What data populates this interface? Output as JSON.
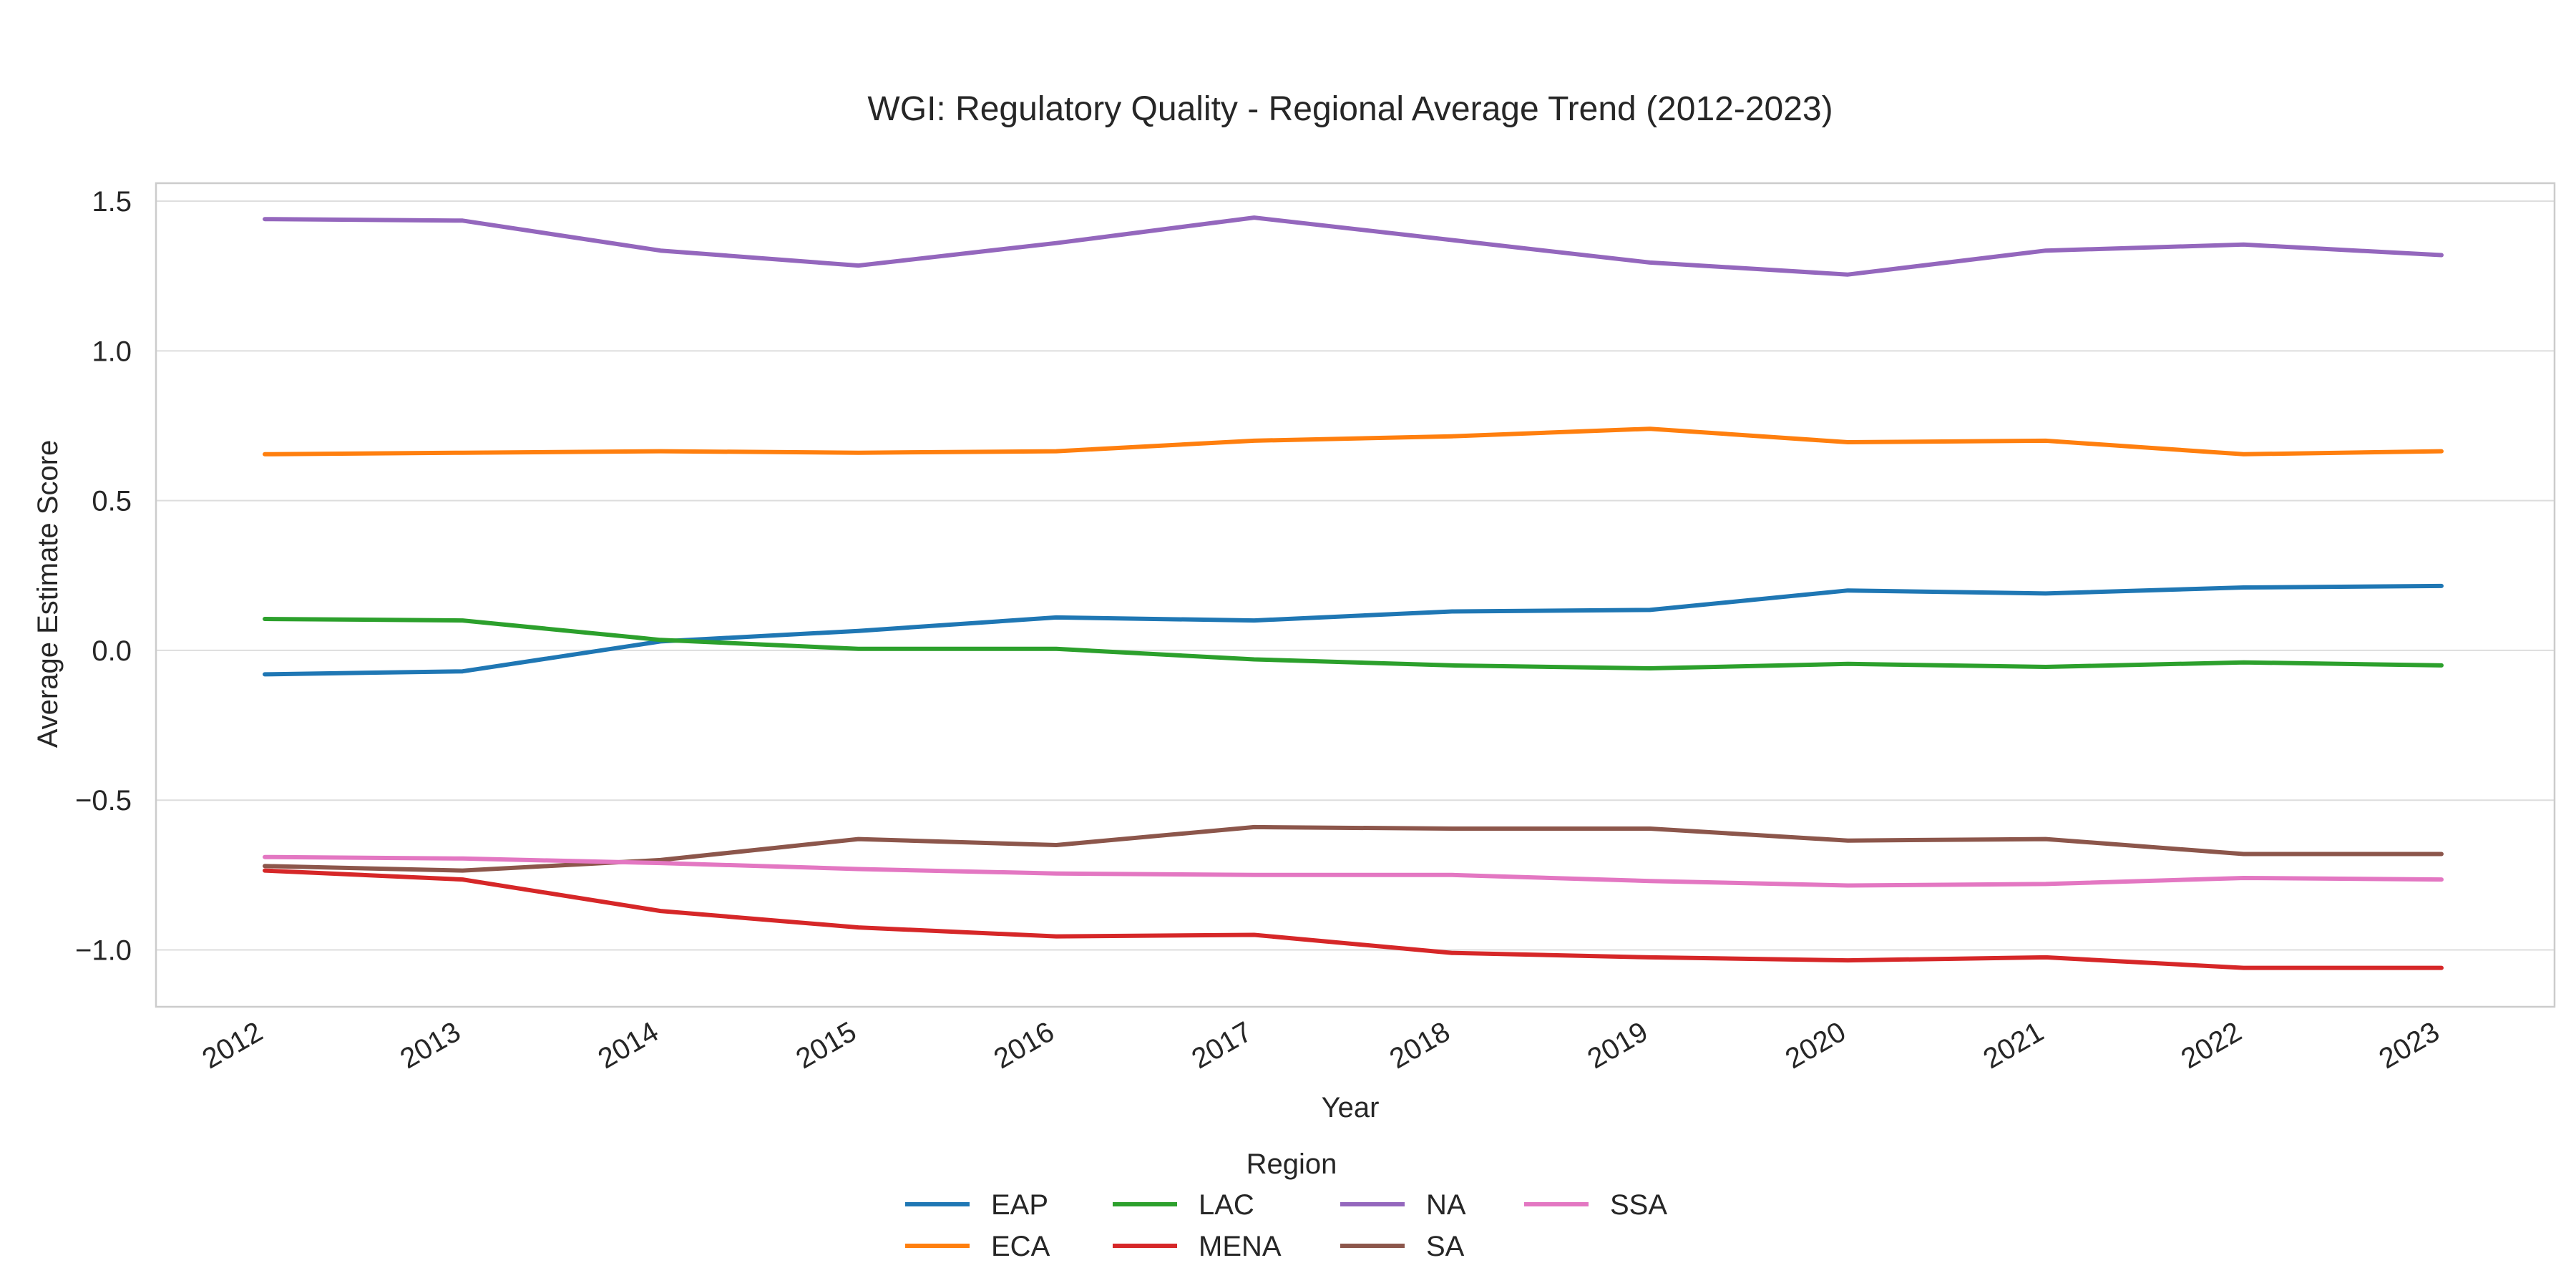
{
  "chart_data": {
    "type": "line",
    "title": "WGI: Regulatory Quality - Regional Average Trend (2012-2023)",
    "xlabel": "Year",
    "ylabel": "Average Estimate Score",
    "x": [
      "2012",
      "2013",
      "2014",
      "2015",
      "2016",
      "2017",
      "2018",
      "2019",
      "2020",
      "2021",
      "2022",
      "2023"
    ],
    "ylim": [
      -1.19,
      1.56
    ],
    "yticks": [
      -1.0,
      -0.5,
      0.0,
      0.5,
      1.0,
      1.5
    ],
    "ytick_labels": [
      "−1.0",
      "−0.5",
      "0.0",
      "0.5",
      "1.0",
      "1.5"
    ],
    "grid": true,
    "legend": {
      "title": "Region",
      "placement": "bottom-center",
      "columns": 4
    },
    "series": [
      {
        "name": "EAP",
        "color": "#1f77b4",
        "values": [
          -0.08,
          -0.07,
          0.03,
          0.065,
          0.11,
          0.1,
          0.13,
          0.135,
          0.2,
          0.19,
          0.21,
          0.215
        ]
      },
      {
        "name": "ECA",
        "color": "#ff7f0e",
        "values": [
          0.655,
          0.66,
          0.665,
          0.66,
          0.665,
          0.7,
          0.715,
          0.74,
          0.695,
          0.7,
          0.655,
          0.665
        ]
      },
      {
        "name": "LAC",
        "color": "#2ca02c",
        "values": [
          0.105,
          0.1,
          0.035,
          0.005,
          0.005,
          -0.03,
          -0.05,
          -0.06,
          -0.045,
          -0.055,
          -0.04,
          -0.05
        ]
      },
      {
        "name": "MENA",
        "color": "#d62728",
        "values": [
          -0.735,
          -0.765,
          -0.87,
          -0.925,
          -0.955,
          -0.95,
          -1.01,
          -1.025,
          -1.035,
          -1.025,
          -1.06,
          -1.06
        ]
      },
      {
        "name": "NA",
        "color": "#9467bd",
        "values": [
          1.44,
          1.435,
          1.335,
          1.285,
          1.36,
          1.445,
          1.37,
          1.295,
          1.255,
          1.335,
          1.355,
          1.32
        ]
      },
      {
        "name": "SA",
        "color": "#8c564b",
        "values": [
          -0.72,
          -0.735,
          -0.7,
          -0.63,
          -0.65,
          -0.59,
          -0.595,
          -0.595,
          -0.635,
          -0.63,
          -0.68,
          -0.68
        ]
      },
      {
        "name": "SSA",
        "color": "#e377c2",
        "values": [
          -0.69,
          -0.695,
          -0.71,
          -0.73,
          -0.745,
          -0.75,
          -0.75,
          -0.77,
          -0.785,
          -0.78,
          -0.76,
          -0.765
        ]
      }
    ]
  }
}
